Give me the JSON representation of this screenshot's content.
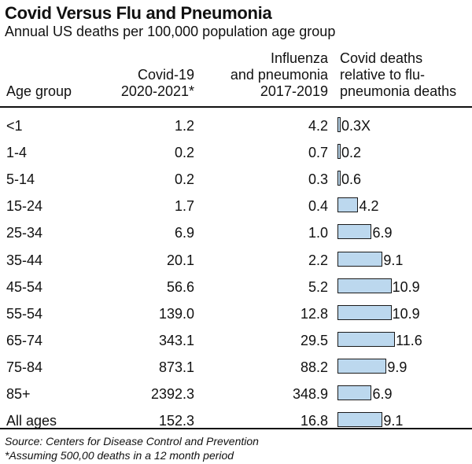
{
  "title": "Covid Versus Flu and Pneumonia",
  "subtitle": "Annual US deaths per 100,000 population age group",
  "headers": {
    "age": "Age group",
    "covid": [
      "Covid-19",
      "2020-2021*"
    ],
    "flu": [
      "Influenza",
      "and pneumonia",
      "2017-2019"
    ],
    "ratio": [
      "Covid deaths",
      "relative to flu-",
      "pneumonia deaths"
    ]
  },
  "chart_data": {
    "type": "table",
    "columns": [
      "Age group",
      "Covid-19 2020-2021*",
      "Influenza and pneumonia 2017-2019",
      "Covid deaths relative to flu-pneumonia deaths"
    ],
    "rows": [
      {
        "age": "<1",
        "covid": "1.2",
        "flu": "4.2",
        "ratio": 0.3,
        "ratio_label": "0.3X"
      },
      {
        "age": "1-4",
        "covid": "0.2",
        "flu": "0.7",
        "ratio": 0.2,
        "ratio_label": "0.2"
      },
      {
        "age": "5-14",
        "covid": "0.2",
        "flu": "0.3",
        "ratio": 0.6,
        "ratio_label": "0.6"
      },
      {
        "age": "15-24",
        "covid": "1.7",
        "flu": "0.4",
        "ratio": 4.2,
        "ratio_label": "4.2"
      },
      {
        "age": "25-34",
        "covid": "6.9",
        "flu": "1.0",
        "ratio": 6.9,
        "ratio_label": "6.9"
      },
      {
        "age": "35-44",
        "covid": "20.1",
        "flu": "2.2",
        "ratio": 9.1,
        "ratio_label": "9.1"
      },
      {
        "age": "45-54",
        "covid": "56.6",
        "flu": "5.2",
        "ratio": 10.9,
        "ratio_label": "10.9"
      },
      {
        "age": "55-54",
        "covid": "139.0",
        "flu": "12.8",
        "ratio": 10.9,
        "ratio_label": "10.9"
      },
      {
        "age": "65-74",
        "covid": "343.1",
        "flu": "29.5",
        "ratio": 11.6,
        "ratio_label": "11.6"
      },
      {
        "age": "75-84",
        "covid": "873.1",
        "flu": "88.2",
        "ratio": 9.9,
        "ratio_label": "9.9"
      },
      {
        "age": "85+",
        "covid": "2392.3",
        "flu": "348.9",
        "ratio": 6.9,
        "ratio_label": "6.9"
      },
      {
        "age": "All ages",
        "covid": "152.3",
        "flu": "16.8",
        "ratio": 9.1,
        "ratio_label": "9.1"
      }
    ],
    "bar_color": "#bcd8ee"
  },
  "footnotes": {
    "source": "Source: Centers for Disease Control and Prevention",
    "note": "*Assuming 500,00 deaths in a 12 month period"
  }
}
